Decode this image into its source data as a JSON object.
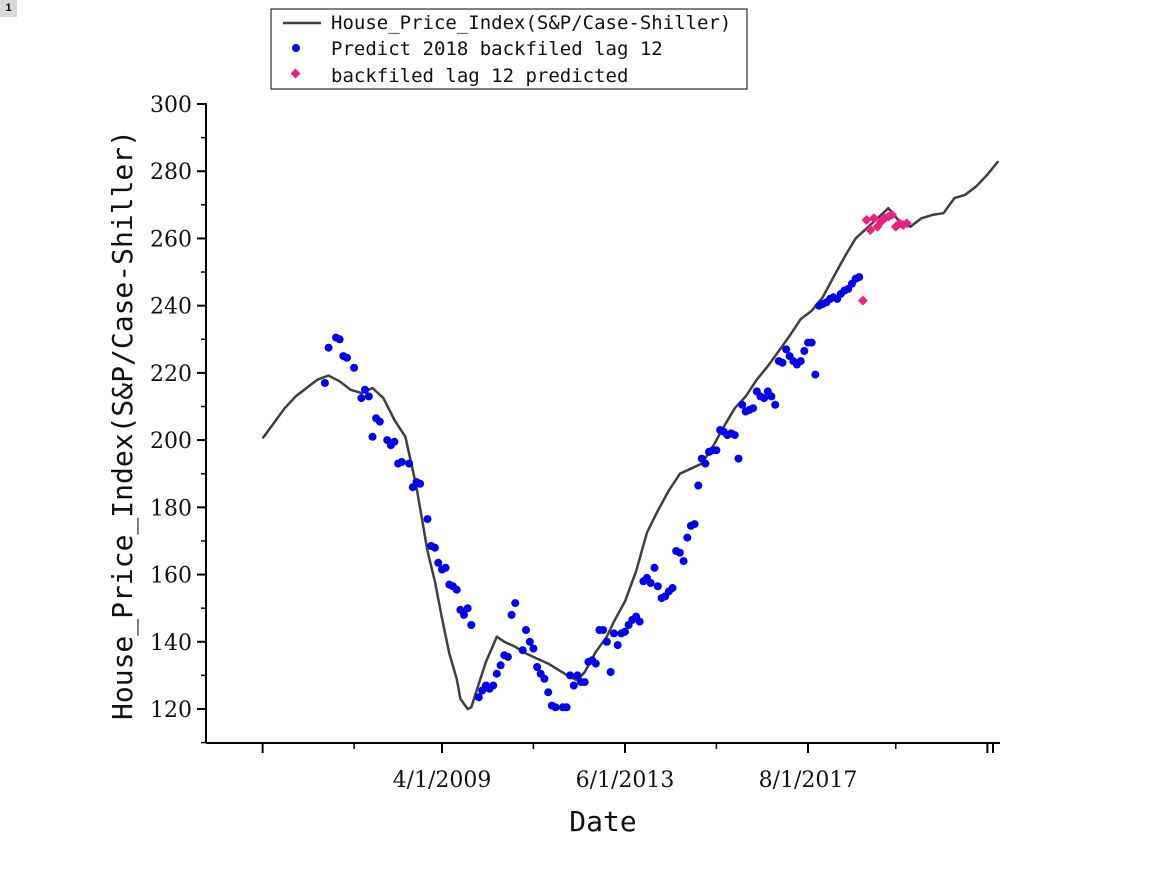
{
  "badge": "1",
  "colors": {
    "line": "#3f3f3f",
    "series_blue": "#0000ee",
    "series_pink": "#ee1f7f",
    "axis": "#000000"
  },
  "chart_data": {
    "type": "line",
    "xlabel": "Date",
    "ylabel": "House_Price_Index(S&P/Case-Shiller)",
    "ylim": [
      110,
      300
    ],
    "xlim": [
      "2001-01-01",
      "2021-04-01"
    ],
    "y_ticks": [
      120,
      140,
      160,
      180,
      200,
      220,
      240,
      260,
      280,
      300
    ],
    "x_tick_labels": [
      "4/1/2009",
      "6/1/2013",
      "8/1/2017"
    ],
    "x_major_ticks": [
      "2005-03-01",
      "2009-04-01",
      "2013-06-01",
      "2017-08-01",
      "2021-09-01"
    ],
    "x_minor_ticks": [
      "2007-04-01",
      "2011-05-01",
      "2015-07-01",
      "2019-08-01"
    ],
    "legend_position": "top",
    "grid": false,
    "legend": [
      {
        "name": "House_Price_Index(S&P/Case-Shiller)",
        "marker": "line"
      },
      {
        "name": "Predict 2018 backfiled lag 12",
        "marker": "circle"
      },
      {
        "name": "backfiled lag 12 predicted",
        "marker": "diamond"
      }
    ],
    "series": [
      {
        "name": "House_Price_Index(S&P/Case-Shiller)",
        "style": "line",
        "points": [
          [
            "2005-03-01",
            200.5
          ],
          [
            "2005-06-01",
            205.0
          ],
          [
            "2005-09-01",
            209.5
          ],
          [
            "2005-12-01",
            213.0
          ],
          [
            "2006-03-01",
            215.5
          ],
          [
            "2006-06-01",
            218.0
          ],
          [
            "2006-09-01",
            219.2
          ],
          [
            "2006-12-01",
            217.5
          ],
          [
            "2007-03-01",
            215.0
          ],
          [
            "2007-06-01",
            214.0
          ],
          [
            "2007-09-01",
            215.5
          ],
          [
            "2007-12-01",
            212.5
          ],
          [
            "2008-03-01",
            206.0
          ],
          [
            "2008-06-01",
            201.0
          ],
          [
            "2008-09-01",
            186.0
          ],
          [
            "2008-12-01",
            167.0
          ],
          [
            "2009-02-01",
            158.0
          ],
          [
            "2009-04-01",
            147.0
          ],
          [
            "2009-06-01",
            136.5
          ],
          [
            "2009-08-01",
            129.0
          ],
          [
            "2009-09-01",
            123.0
          ],
          [
            "2009-11-01",
            120.0
          ],
          [
            "2009-12-01",
            120.5
          ],
          [
            "2010-02-01",
            127.5
          ],
          [
            "2010-04-01",
            134.0
          ],
          [
            "2010-06-01",
            139.0
          ],
          [
            "2010-07-01",
            141.5
          ],
          [
            "2010-09-01",
            140.0
          ],
          [
            "2010-12-01",
            138.5
          ],
          [
            "2011-03-01",
            136.5
          ],
          [
            "2011-06-01",
            135.0
          ],
          [
            "2011-09-01",
            133.5
          ],
          [
            "2011-12-01",
            131.5
          ],
          [
            "2012-03-01",
            129.5
          ],
          [
            "2012-05-01",
            128.5
          ],
          [
            "2012-07-01",
            131.0
          ],
          [
            "2012-10-01",
            137.0
          ],
          [
            "2013-01-01",
            141.5
          ],
          [
            "2013-03-01",
            146.0
          ],
          [
            "2013-06-01",
            152.0
          ],
          [
            "2013-09-01",
            161.0
          ],
          [
            "2013-12-01",
            172.5
          ],
          [
            "2014-03-01",
            179.0
          ],
          [
            "2014-06-01",
            185.0
          ],
          [
            "2014-09-01",
            190.0
          ],
          [
            "2014-12-01",
            191.5
          ],
          [
            "2015-03-01",
            193.0
          ],
          [
            "2015-06-01",
            198.0
          ],
          [
            "2015-09-01",
            204.0
          ],
          [
            "2015-12-01",
            209.5
          ],
          [
            "2016-03-01",
            213.0
          ],
          [
            "2016-06-01",
            218.0
          ],
          [
            "2016-09-01",
            222.0
          ],
          [
            "2016-12-01",
            226.5
          ],
          [
            "2017-03-01",
            231.0
          ],
          [
            "2017-06-01",
            236.0
          ],
          [
            "2017-09-01",
            238.5
          ],
          [
            "2017-12-01",
            242.5
          ],
          [
            "2018-03-01",
            248.5
          ],
          [
            "2018-06-01",
            254.5
          ],
          [
            "2018-09-01",
            260.0
          ],
          [
            "2018-12-01",
            263.0
          ],
          [
            "2019-03-01",
            266.0
          ],
          [
            "2019-06-01",
            269.0
          ],
          [
            "2019-09-01",
            265.0
          ],
          [
            "2019-12-01",
            263.5
          ],
          [
            "2020-03-01",
            266.0
          ],
          [
            "2020-06-01",
            267.0
          ],
          [
            "2020-09-01",
            267.5
          ],
          [
            "2020-12-01",
            272.0
          ],
          [
            "2021-03-01",
            273.0
          ],
          [
            "2021-06-01",
            275.5
          ],
          [
            "2021-09-01",
            279.0
          ],
          [
            "2021-12-01",
            283.0
          ]
        ]
      },
      {
        "name": "Predict 2018 backfiled lag 12",
        "style": "scatter-circle",
        "points": [
          [
            "2006-08-01",
            217.0
          ],
          [
            "2006-09-01",
            227.5
          ],
          [
            "2006-11-01",
            230.5
          ],
          [
            "2006-12-01",
            230.0
          ],
          [
            "2007-01-01",
            225.0
          ],
          [
            "2007-02-01",
            224.5
          ],
          [
            "2007-04-01",
            221.5
          ],
          [
            "2007-06-01",
            212.5
          ],
          [
            "2007-07-01",
            215.0
          ],
          [
            "2007-08-01",
            213.0
          ],
          [
            "2007-09-01",
            201.0
          ],
          [
            "2007-10-01",
            206.5
          ],
          [
            "2007-11-01",
            205.5
          ],
          [
            "2008-01-01",
            200.0
          ],
          [
            "2008-02-01",
            198.5
          ],
          [
            "2008-03-01",
            199.5
          ],
          [
            "2008-04-01",
            193.0
          ],
          [
            "2008-05-01",
            193.5
          ],
          [
            "2008-07-01",
            193.0
          ],
          [
            "2008-08-01",
            186.0
          ],
          [
            "2008-09-01",
            187.5
          ],
          [
            "2008-10-01",
            187.0
          ],
          [
            "2008-12-01",
            176.5
          ],
          [
            "2009-01-01",
            168.5
          ],
          [
            "2009-02-01",
            168.0
          ],
          [
            "2009-03-01",
            163.5
          ],
          [
            "2009-04-01",
            161.5
          ],
          [
            "2009-05-01",
            162.0
          ],
          [
            "2009-06-01",
            157.0
          ],
          [
            "2009-07-01",
            156.5
          ],
          [
            "2009-08-01",
            155.5
          ],
          [
            "2009-09-01",
            149.5
          ],
          [
            "2009-10-01",
            148.0
          ],
          [
            "2009-11-01",
            150.0
          ],
          [
            "2009-12-01",
            145.0
          ],
          [
            "2010-02-01",
            123.5
          ],
          [
            "2010-03-01",
            125.5
          ],
          [
            "2010-04-01",
            127.0
          ],
          [
            "2010-05-01",
            126.0
          ],
          [
            "2010-06-01",
            127.0
          ],
          [
            "2010-07-01",
            130.5
          ],
          [
            "2010-08-01",
            133.0
          ],
          [
            "2010-09-01",
            136.0
          ],
          [
            "2010-10-01",
            135.5
          ],
          [
            "2010-11-01",
            148.0
          ],
          [
            "2010-12-01",
            151.5
          ],
          [
            "2011-02-01",
            137.5
          ],
          [
            "2011-03-01",
            143.5
          ],
          [
            "2011-04-01",
            140.0
          ],
          [
            "2011-05-01",
            138.0
          ],
          [
            "2011-06-01",
            132.5
          ],
          [
            "2011-07-01",
            130.5
          ],
          [
            "2011-08-01",
            129.0
          ],
          [
            "2011-09-01",
            125.0
          ],
          [
            "2011-10-01",
            121.0
          ],
          [
            "2011-11-01",
            120.5
          ],
          [
            "2012-01-01",
            120.5
          ],
          [
            "2012-02-01",
            120.5
          ],
          [
            "2012-03-01",
            130.0
          ],
          [
            "2012-04-01",
            127.0
          ],
          [
            "2012-05-01",
            130.0
          ],
          [
            "2012-06-01",
            128.0
          ],
          [
            "2012-07-01",
            128.0
          ],
          [
            "2012-08-01",
            134.0
          ],
          [
            "2012-09-01",
            134.5
          ],
          [
            "2012-10-01",
            133.5
          ],
          [
            "2012-11-01",
            143.5
          ],
          [
            "2012-12-01",
            143.5
          ],
          [
            "2013-01-01",
            140.0
          ],
          [
            "2013-02-01",
            131.0
          ],
          [
            "2013-03-01",
            142.5
          ],
          [
            "2013-04-01",
            139.0
          ],
          [
            "2013-05-01",
            142.5
          ],
          [
            "2013-06-01",
            143.0
          ],
          [
            "2013-07-01",
            145.0
          ],
          [
            "2013-08-01",
            146.5
          ],
          [
            "2013-09-01",
            147.5
          ],
          [
            "2013-10-01",
            146.0
          ],
          [
            "2013-11-01",
            158.0
          ],
          [
            "2013-12-01",
            159.0
          ],
          [
            "2014-01-01",
            157.5
          ],
          [
            "2014-02-01",
            162.0
          ],
          [
            "2014-03-01",
            156.5
          ],
          [
            "2014-04-01",
            153.0
          ],
          [
            "2014-05-01",
            153.5
          ],
          [
            "2014-06-01",
            155.0
          ],
          [
            "2014-07-01",
            156.0
          ],
          [
            "2014-08-01",
            167.0
          ],
          [
            "2014-09-01",
            166.5
          ],
          [
            "2014-10-01",
            164.0
          ],
          [
            "2014-11-01",
            171.0
          ],
          [
            "2014-12-01",
            174.5
          ],
          [
            "2015-01-01",
            175.0
          ],
          [
            "2015-02-01",
            186.5
          ],
          [
            "2015-03-01",
            194.5
          ],
          [
            "2015-04-01",
            193.0
          ],
          [
            "2015-05-01",
            196.5
          ],
          [
            "2015-06-01",
            197.0
          ],
          [
            "2015-07-01",
            197.0
          ],
          [
            "2015-08-01",
            203.0
          ],
          [
            "2015-09-01",
            202.5
          ],
          [
            "2015-10-01",
            201.5
          ],
          [
            "2015-11-01",
            202.0
          ],
          [
            "2015-12-01",
            201.5
          ],
          [
            "2016-01-01",
            194.5
          ],
          [
            "2016-02-01",
            210.5
          ],
          [
            "2016-03-01",
            208.5
          ],
          [
            "2016-04-01",
            209.0
          ],
          [
            "2016-05-01",
            209.5
          ],
          [
            "2016-06-01",
            214.5
          ],
          [
            "2016-07-01",
            213.0
          ],
          [
            "2016-08-01",
            212.5
          ],
          [
            "2016-09-01",
            214.5
          ],
          [
            "2016-10-01",
            213.0
          ],
          [
            "2016-11-01",
            210.5
          ],
          [
            "2016-12-01",
            223.5
          ],
          [
            "2017-01-01",
            223.0
          ],
          [
            "2017-02-01",
            227.0
          ],
          [
            "2017-03-01",
            225.0
          ],
          [
            "2017-04-01",
            223.5
          ],
          [
            "2017-05-01",
            222.5
          ],
          [
            "2017-06-01",
            223.5
          ],
          [
            "2017-07-01",
            226.5
          ],
          [
            "2017-08-01",
            229.0
          ],
          [
            "2017-09-01",
            229.0
          ],
          [
            "2017-10-01",
            219.5
          ],
          [
            "2017-11-01",
            240.0
          ],
          [
            "2017-12-01",
            240.5
          ],
          [
            "2018-01-01",
            241.0
          ],
          [
            "2018-02-01",
            242.0
          ],
          [
            "2018-03-01",
            242.5
          ],
          [
            "2018-04-01",
            242.0
          ],
          [
            "2018-05-01",
            243.5
          ],
          [
            "2018-06-01",
            244.5
          ],
          [
            "2018-07-01",
            245.0
          ],
          [
            "2018-08-01",
            246.5
          ],
          [
            "2018-09-01",
            248.0
          ],
          [
            "2018-10-01",
            248.5
          ]
        ]
      },
      {
        "name": "backfiled lag 12 predicted",
        "style": "scatter-diamond",
        "points": [
          [
            "2018-11-01",
            241.5
          ],
          [
            "2018-12-01",
            265.5
          ],
          [
            "2019-01-01",
            262.5
          ],
          [
            "2019-02-01",
            266.0
          ],
          [
            "2019-03-01",
            263.5
          ],
          [
            "2019-04-01",
            265.0
          ],
          [
            "2019-05-01",
            266.0
          ],
          [
            "2019-06-01",
            266.5
          ],
          [
            "2019-07-01",
            267.0
          ],
          [
            "2019-08-01",
            263.5
          ],
          [
            "2019-09-01",
            264.5
          ],
          [
            "2019-10-01",
            264.0
          ],
          [
            "2019-11-01",
            264.5
          ]
        ]
      }
    ]
  }
}
